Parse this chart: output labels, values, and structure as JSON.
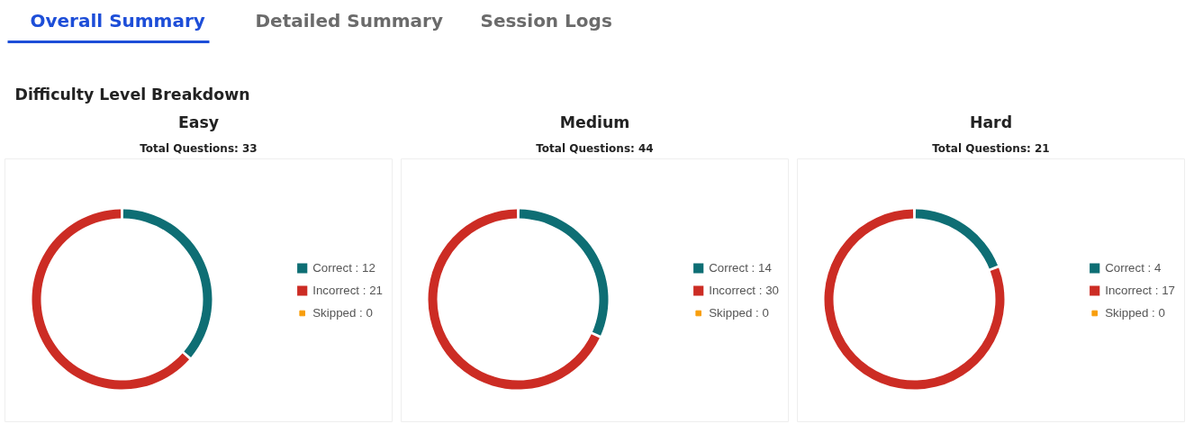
{
  "chart_data": [
    {
      "type": "other",
      "title": "Difficulty Level Breakdown",
      "annotations": [
        "Overall Summary",
        "Detailed Summary",
        "Session Logs"
      ]
    },
    {
      "type": "donut",
      "title": "Easy",
      "subtitle": "Total Questions: 33",
      "categories": [
        "Correct : 12",
        "Incorrect : 21",
        "Skipped : 0"
      ],
      "values": [
        12,
        21,
        0
      ],
      "colors": [
        "#0e6e74",
        "#cc2c24",
        "#f89e0c"
      ],
      "legend": "right"
    },
    {
      "type": "donut",
      "title": "Medium",
      "subtitle": "Total Questions: 44",
      "categories": [
        "Correct : 14",
        "Incorrect : 30",
        "Skipped : 0"
      ],
      "values": [
        14,
        30,
        0
      ],
      "colors": [
        "#0e6e74",
        "#cc2c24",
        "#f89e0c"
      ],
      "legend": "right"
    },
    {
      "type": "donut",
      "title": "Hard",
      "subtitle": "Total Questions: 21",
      "categories": [
        "Correct : 4",
        "Incorrect : 17",
        "Skipped : 0"
      ],
      "values": [
        4,
        17,
        0
      ],
      "colors": [
        "#0e6e74",
        "#cc2c24",
        "#f89e0c"
      ],
      "legend": "right"
    }
  ]
}
